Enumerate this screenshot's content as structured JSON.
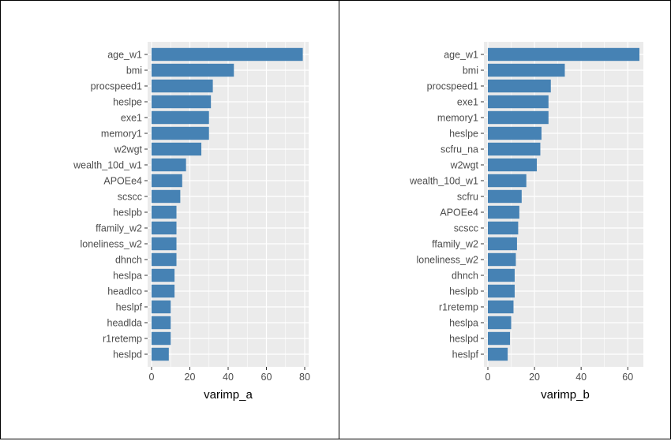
{
  "chart_data": [
    {
      "type": "bar",
      "orientation": "horizontal",
      "xlabel": "varimp_a",
      "ylabel": "",
      "xlim": [
        0,
        80
      ],
      "xticks": [
        "0",
        "20",
        "40",
        "60",
        "80"
      ],
      "grid": true,
      "bar_color": "#4682B4",
      "panel_background": "#EBEBEB",
      "categories": [
        "age_w1",
        "bmi",
        "procspeed1",
        "heslpe",
        "exe1",
        "memory1",
        "w2wgt",
        "wealth_10d_w1",
        "APOEe4",
        "scscc",
        "heslpb",
        "ffamily_w2",
        "loneliness_w2",
        "dhnch",
        "heslpa",
        "headlco",
        "heslpf",
        "headlda",
        "r1retemp",
        "heslpd"
      ],
      "values": [
        79,
        43,
        32,
        31,
        30,
        30,
        26,
        18,
        16,
        15,
        13,
        13,
        13,
        13,
        12,
        12,
        10,
        10,
        10,
        9
      ]
    },
    {
      "type": "bar",
      "orientation": "horizontal",
      "xlabel": "varimp_b",
      "ylabel": "",
      "xlim": [
        0,
        65
      ],
      "xticks": [
        "0",
        "20",
        "40",
        "60"
      ],
      "grid": true,
      "bar_color": "#4682B4",
      "panel_background": "#EBEBEB",
      "categories": [
        "age_w1",
        "bmi",
        "procspeed1",
        "exe1",
        "memory1",
        "heslpe",
        "scfru_na",
        "w2wgt",
        "wealth_10d_w1",
        "scfru",
        "APOEe4",
        "scscc",
        "ffamily_w2",
        "loneliness_w2",
        "dhnch",
        "heslpb",
        "r1retemp",
        "heslpa",
        "heslpd",
        "heslpf"
      ],
      "values": [
        65,
        33,
        27,
        26,
        26,
        23,
        22.5,
        21,
        16.5,
        14.5,
        13.5,
        13,
        12.5,
        12,
        11.5,
        11.5,
        11,
        10,
        9.5,
        8.5
      ]
    }
  ]
}
